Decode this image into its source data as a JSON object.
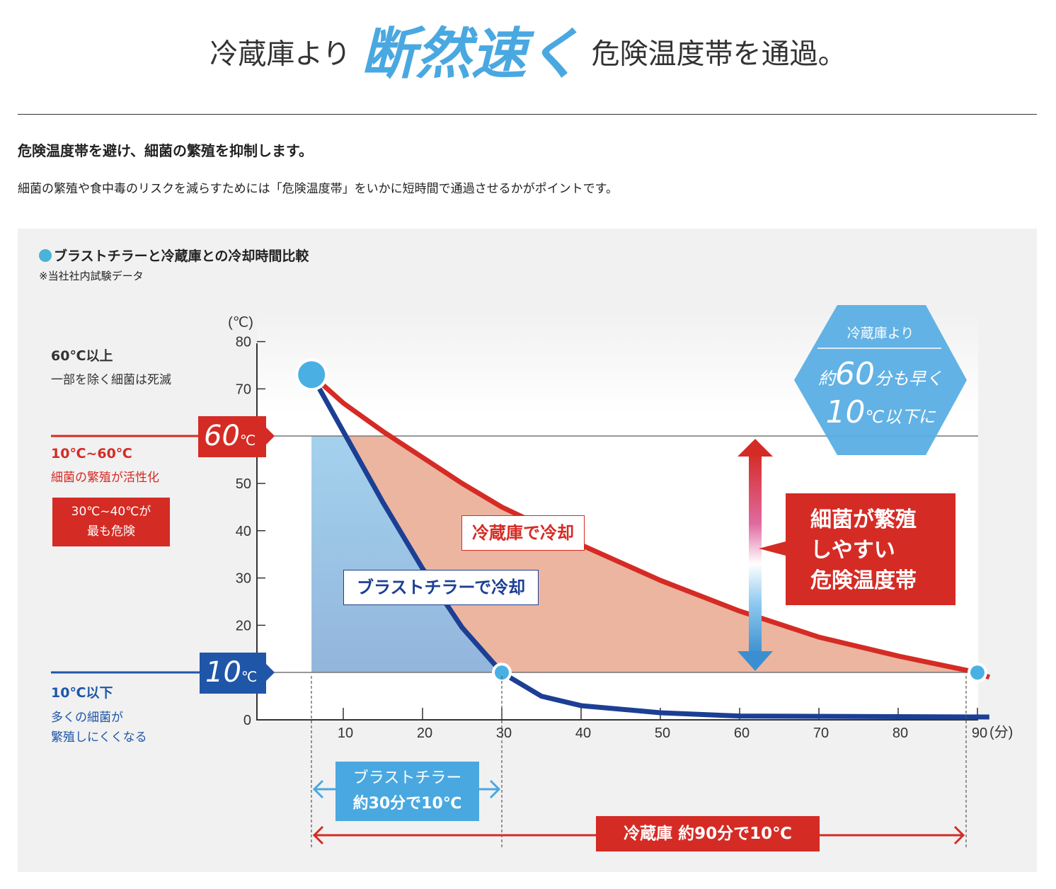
{
  "headline": {
    "before": "冷蔵庫より",
    "emphasis": "断然速く",
    "after": "危険温度帯を通過。"
  },
  "subheading": "危険温度帯を避け、細菌の繁殖を抑制します。",
  "lead": "細菌の繁殖や食中毒のリスクを減らすためには「危険温度帯」をいかに短時間で通過させるかがポイントです。",
  "panel": {
    "title": "ブラストチラーと冷蔵庫との冷却時間比較",
    "note": "※当社社内試験データ"
  },
  "zones": {
    "above60_title": "60℃以上",
    "above60_desc": "一部を除く細菌は死滅",
    "mid_title": "10℃~60℃",
    "mid_desc": "細菌の繁殖が活性化",
    "peak_line1": "30℃~40℃が",
    "peak_line2": "最も危険",
    "below10_title": "10℃以下",
    "below10_desc1": "多くの細菌が",
    "below10_desc2": "繁殖しにくくなる",
    "marker60_num": "60",
    "marker10_num": "10",
    "marker_unit": "℃"
  },
  "hexagon": {
    "line1": "冷蔵庫より",
    "line2_pre": "約",
    "line2_num": "60",
    "line2_post": "分も早く",
    "line3_num": "10",
    "line3_post": "℃以下に"
  },
  "danger_box": {
    "line1": "細菌が繁殖",
    "line2": "しやすい",
    "line3": "危険温度帯"
  },
  "series_labels": {
    "fridge": "冷蔵庫で冷却",
    "blast": "ブラストチラーで冷却"
  },
  "bottom": {
    "blast_line1": "ブラストチラー",
    "blast_line2": "約30分で10℃",
    "fridge": "冷蔵庫 約90分で10℃"
  },
  "colors": {
    "fridge": "#d52b25",
    "blast": "#1c3f94",
    "dot": "#4ab0e4",
    "salmon": "#ecb5a0",
    "hex": "#5aaee4"
  },
  "chart_data": {
    "type": "line",
    "title": "ブラストチラーと冷蔵庫との冷却時間比較",
    "ylabel": "(℃)",
    "xlabel": "(分)",
    "ylim": [
      0,
      80
    ],
    "xlim": [
      0,
      92
    ],
    "yticks": [
      "0",
      "10",
      "20",
      "30",
      "40",
      "50",
      "60",
      "70",
      "80"
    ],
    "xticks": [
      "10",
      "20",
      "30",
      "40",
      "50",
      "60",
      "70",
      "80",
      "90"
    ],
    "thresholds": [
      60,
      10
    ],
    "series": [
      {
        "name": "冷蔵庫で冷却",
        "points": [
          [
            6,
            73
          ],
          [
            10,
            67
          ],
          [
            15,
            61
          ],
          [
            20,
            55.5
          ],
          [
            25,
            50
          ],
          [
            30,
            45
          ],
          [
            40,
            37
          ],
          [
            50,
            29.5
          ],
          [
            60,
            23
          ],
          [
            70,
            17.5
          ],
          [
            80,
            13.5
          ],
          [
            90,
            10
          ],
          [
            91.5,
            9
          ]
        ]
      },
      {
        "name": "ブラストチラーで冷却",
        "points": [
          [
            6,
            73
          ],
          [
            10,
            61
          ],
          [
            15,
            46
          ],
          [
            20,
            32
          ],
          [
            25,
            19.5
          ],
          [
            30,
            10
          ],
          [
            35,
            5
          ],
          [
            40,
            3
          ],
          [
            50,
            1.5
          ],
          [
            60,
            0.8
          ],
          [
            91.5,
            0.6
          ]
        ]
      }
    ],
    "markers": [
      {
        "x": 6,
        "y": 73
      },
      {
        "x": 30,
        "y": 10
      },
      {
        "x": 90,
        "y": 10
      }
    ]
  }
}
